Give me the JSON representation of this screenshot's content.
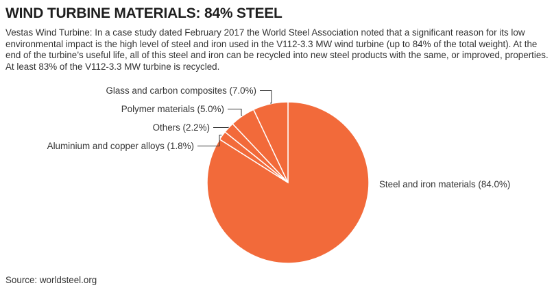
{
  "header": {
    "title": "WIND TURBINE MATERIALS: 84% STEEL",
    "description": "Vestas Wind Turbine: In a case study dated February 2017 the World Steel Association noted that a significant reason for its low environmental impact is the high level of steel and iron used in the V112-3.3 MW wind turbine (up to 84% of the total weight). At the end of the turbine’s useful life, all of this steel and iron can be recycled into new steel products with the same, or improved, properties. At least 83% of the V112-3.3 MW turbine is recycled."
  },
  "footer": {
    "source": "Source: worldsteel.org"
  },
  "colors": {
    "slice": "#f26a3a",
    "separator": "#ffffff",
    "leader": "#333333"
  },
  "chart_data": {
    "type": "pie",
    "categories": [
      "Steel and iron materials",
      "Aluminium and copper alloys",
      "Others",
      "Polymer materials",
      "Glass and carbon composites"
    ],
    "values": [
      84.0,
      1.8,
      2.2,
      5.0,
      7.0
    ],
    "labels": [
      "Steel and iron materials (84.0%)",
      "Aluminium and copper alloys (1.8%)",
      "Others (2.2%)",
      "Polymer materials (5.0%)",
      "Glass and carbon composites (7.0%)"
    ],
    "unit": "%"
  }
}
